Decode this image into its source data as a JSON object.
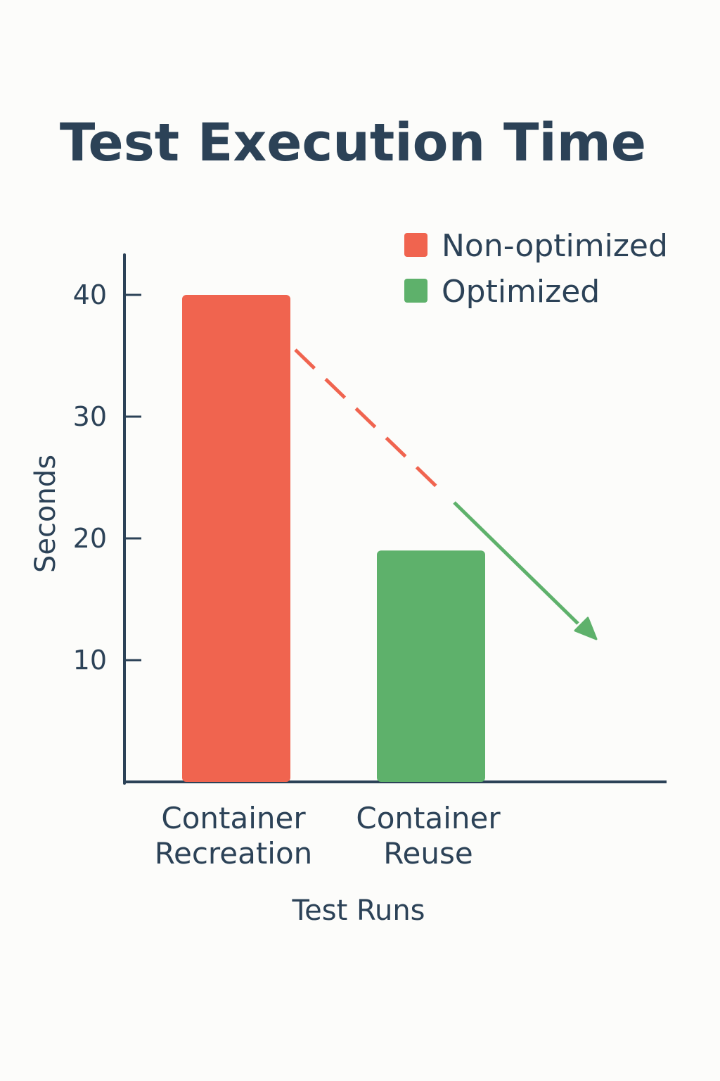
{
  "chart_data": {
    "type": "bar",
    "title": "Test Execution Time",
    "xlabel": "Test Runs",
    "ylabel": "Seconds",
    "categories": [
      [
        "Container",
        "Recreation"
      ],
      [
        "Container",
        "Reuse"
      ]
    ],
    "series": [
      {
        "name": "Non-optimized",
        "color": "#f0644f",
        "values": [
          40,
          null
        ]
      },
      {
        "name": "Optimized",
        "color": "#5eb16b",
        "values": [
          null,
          19
        ]
      }
    ],
    "values": [
      40,
      19
    ],
    "bar_colors": [
      "#f0644f",
      "#5eb16b"
    ],
    "ylim": [
      0,
      44
    ],
    "yticks": [
      10,
      20,
      30,
      40
    ],
    "grid": false,
    "legend_position": "top-right",
    "annotations": [
      {
        "type": "trend-arrow",
        "dashed_color": "#f0644f",
        "solid_color": "#5eb16b",
        "direction": "down-right"
      }
    ],
    "axis_color": "#2c4257"
  }
}
